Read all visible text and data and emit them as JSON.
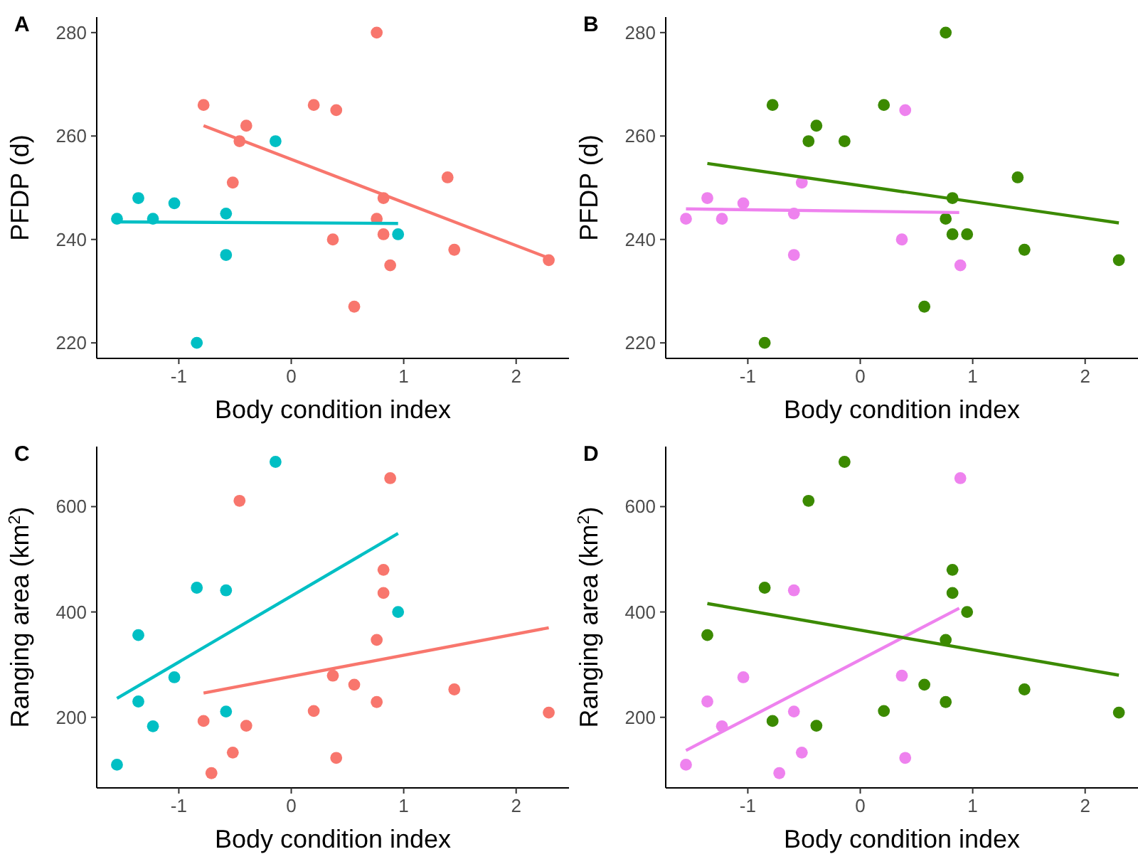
{
  "chart_data": [
    {
      "type": "scatter",
      "title": "A",
      "xlabel": "Body condition index",
      "ylabel": "PFDP (d)",
      "xlim": [
        -1.73,
        2.47
      ],
      "ylim": [
        217,
        283
      ],
      "xticks": [
        -1,
        0,
        1,
        2
      ],
      "yticks": [
        220,
        240,
        260,
        280
      ],
      "grid": false,
      "series": [
        {
          "color": "#f8766d",
          "marker": "circle",
          "x": [
            -0.78,
            0.2,
            0.4,
            -0.4,
            -0.46,
            -0.52,
            0.76,
            0.82,
            0.76,
            0.82,
            0.37,
            0.88,
            0.56,
            1.39,
            1.45,
            2.29
          ],
          "values": [
            266,
            266,
            265,
            262,
            259,
            251,
            280,
            248,
            244,
            241,
            240,
            235,
            227,
            252,
            238,
            236
          ]
        },
        {
          "color": "#00bfc4",
          "marker": "circle",
          "x": [
            -1.55,
            -1.36,
            -1.23,
            -1.04,
            -0.58,
            -0.58,
            -0.84,
            -0.14,
            0.95
          ],
          "values": [
            244,
            248,
            244,
            247,
            245,
            237,
            220,
            259,
            241
          ]
        },
        {
          "type": "line",
          "marker": "none",
          "color": "#f8766d",
          "x": [
            -0.78,
            2.29
          ],
          "values": [
            262,
            236.4
          ]
        },
        {
          "type": "line",
          "marker": "none",
          "color": "#00bfc4",
          "x": [
            -1.58,
            0.95
          ],
          "values": [
            243.4,
            243.1
          ]
        }
      ]
    },
    {
      "type": "scatter",
      "title": "B",
      "xlabel": "Body condition index",
      "ylabel": "PFDP (d)",
      "xlim": [
        -1.73,
        2.47
      ],
      "ylim": [
        217,
        283
      ],
      "xticks": [
        -1,
        0,
        1,
        2
      ],
      "yticks": [
        220,
        240,
        260,
        280
      ],
      "grid": false,
      "series": [
        {
          "color": "#ee82ee",
          "marker": "circle",
          "x": [
            -1.55,
            -1.36,
            -1.23,
            -1.04,
            -0.59,
            -0.59,
            -0.52,
            0.4,
            0.37,
            0.89
          ],
          "values": [
            244,
            248,
            244,
            247,
            245,
            237,
            251,
            265,
            240,
            235
          ]
        },
        {
          "color": "#3b8a00",
          "marker": "circle",
          "x": [
            -0.78,
            -0.46,
            -0.39,
            -0.14,
            -0.85,
            0.21,
            0.76,
            0.82,
            0.76,
            0.82,
            0.95,
            0.57,
            1.4,
            1.46,
            2.3
          ],
          "values": [
            266,
            259,
            262,
            259,
            220,
            266,
            280,
            248,
            244,
            241,
            241,
            227,
            252,
            238,
            236
          ]
        },
        {
          "type": "line",
          "marker": "none",
          "color": "#ee82ee",
          "x": [
            -1.55,
            0.88
          ],
          "values": [
            245.9,
            245.2
          ]
        },
        {
          "type": "line",
          "marker": "none",
          "color": "#3b8a00",
          "x": [
            -1.36,
            2.3
          ],
          "values": [
            254.7,
            243.2
          ]
        }
      ]
    },
    {
      "type": "scatter",
      "title": "C",
      "xlabel": "Body condition index",
      "ylabel": "Ranging area (km$^{2}$)",
      "xlim": [
        -1.73,
        2.47
      ],
      "ylim": [
        66,
        714
      ],
      "xticks": [
        -1,
        0,
        1,
        2
      ],
      "yticks": [
        200,
        400,
        600
      ],
      "grid": false,
      "series": [
        {
          "color": "#00bfc4",
          "marker": "circle",
          "x": [
            -1.55,
            -1.36,
            -1.36,
            -1.23,
            -1.04,
            -0.84,
            -0.58,
            -0.58,
            -0.14,
            0.95
          ],
          "values": [
            110,
            356,
            230,
            183,
            276,
            446,
            441,
            211,
            685,
            400
          ]
        },
        {
          "color": "#f8766d",
          "marker": "circle",
          "x": [
            -0.78,
            -0.71,
            -0.52,
            -0.46,
            -0.4,
            0.2,
            0.37,
            0.4,
            0.56,
            0.76,
            0.76,
            0.82,
            0.82,
            0.88,
            1.45,
            2.29
          ],
          "values": [
            193,
            94,
            133,
            611,
            184,
            212,
            279,
            123,
            262,
            347,
            229,
            480,
            436,
            654,
            253,
            209
          ]
        },
        {
          "type": "line",
          "marker": "none",
          "color": "#00bfc4",
          "x": [
            -1.55,
            0.95
          ],
          "values": [
            236,
            549
          ]
        },
        {
          "type": "line",
          "marker": "none",
          "color": "#f8766d",
          "x": [
            -0.78,
            2.29
          ],
          "values": [
            246,
            370
          ]
        }
      ]
    },
    {
      "type": "scatter",
      "title": "D",
      "xlabel": "Body condition index",
      "ylabel": "Ranging area (km$^{2}$)",
      "xlim": [
        -1.73,
        2.47
      ],
      "ylim": [
        66,
        714
      ],
      "xticks": [
        -1,
        0,
        1,
        2
      ],
      "yticks": [
        200,
        400,
        600
      ],
      "grid": false,
      "series": [
        {
          "color": "#ee82ee",
          "marker": "circle",
          "x": [
            -1.55,
            -1.36,
            -1.23,
            -1.04,
            -0.59,
            -0.59,
            -0.52,
            -0.72,
            0.37,
            0.4,
            0.89
          ],
          "values": [
            110,
            230,
            183,
            276,
            441,
            211,
            133,
            94,
            279,
            123,
            654
          ]
        },
        {
          "color": "#3b8a00",
          "marker": "circle",
          "x": [
            -1.36,
            -0.85,
            -0.78,
            -0.46,
            -0.39,
            -0.14,
            0.21,
            0.57,
            0.76,
            0.76,
            0.82,
            0.82,
            0.95,
            1.46,
            2.3
          ],
          "values": [
            356,
            446,
            193,
            611,
            184,
            685,
            212,
            262,
            347,
            229,
            480,
            436,
            400,
            253,
            209
          ]
        },
        {
          "type": "line",
          "marker": "none",
          "color": "#ee82ee",
          "x": [
            -1.55,
            0.88
          ],
          "values": [
            137,
            407
          ]
        },
        {
          "type": "line",
          "marker": "none",
          "color": "#3b8a00",
          "x": [
            -1.36,
            2.3
          ],
          "values": [
            416,
            280
          ]
        }
      ]
    }
  ]
}
